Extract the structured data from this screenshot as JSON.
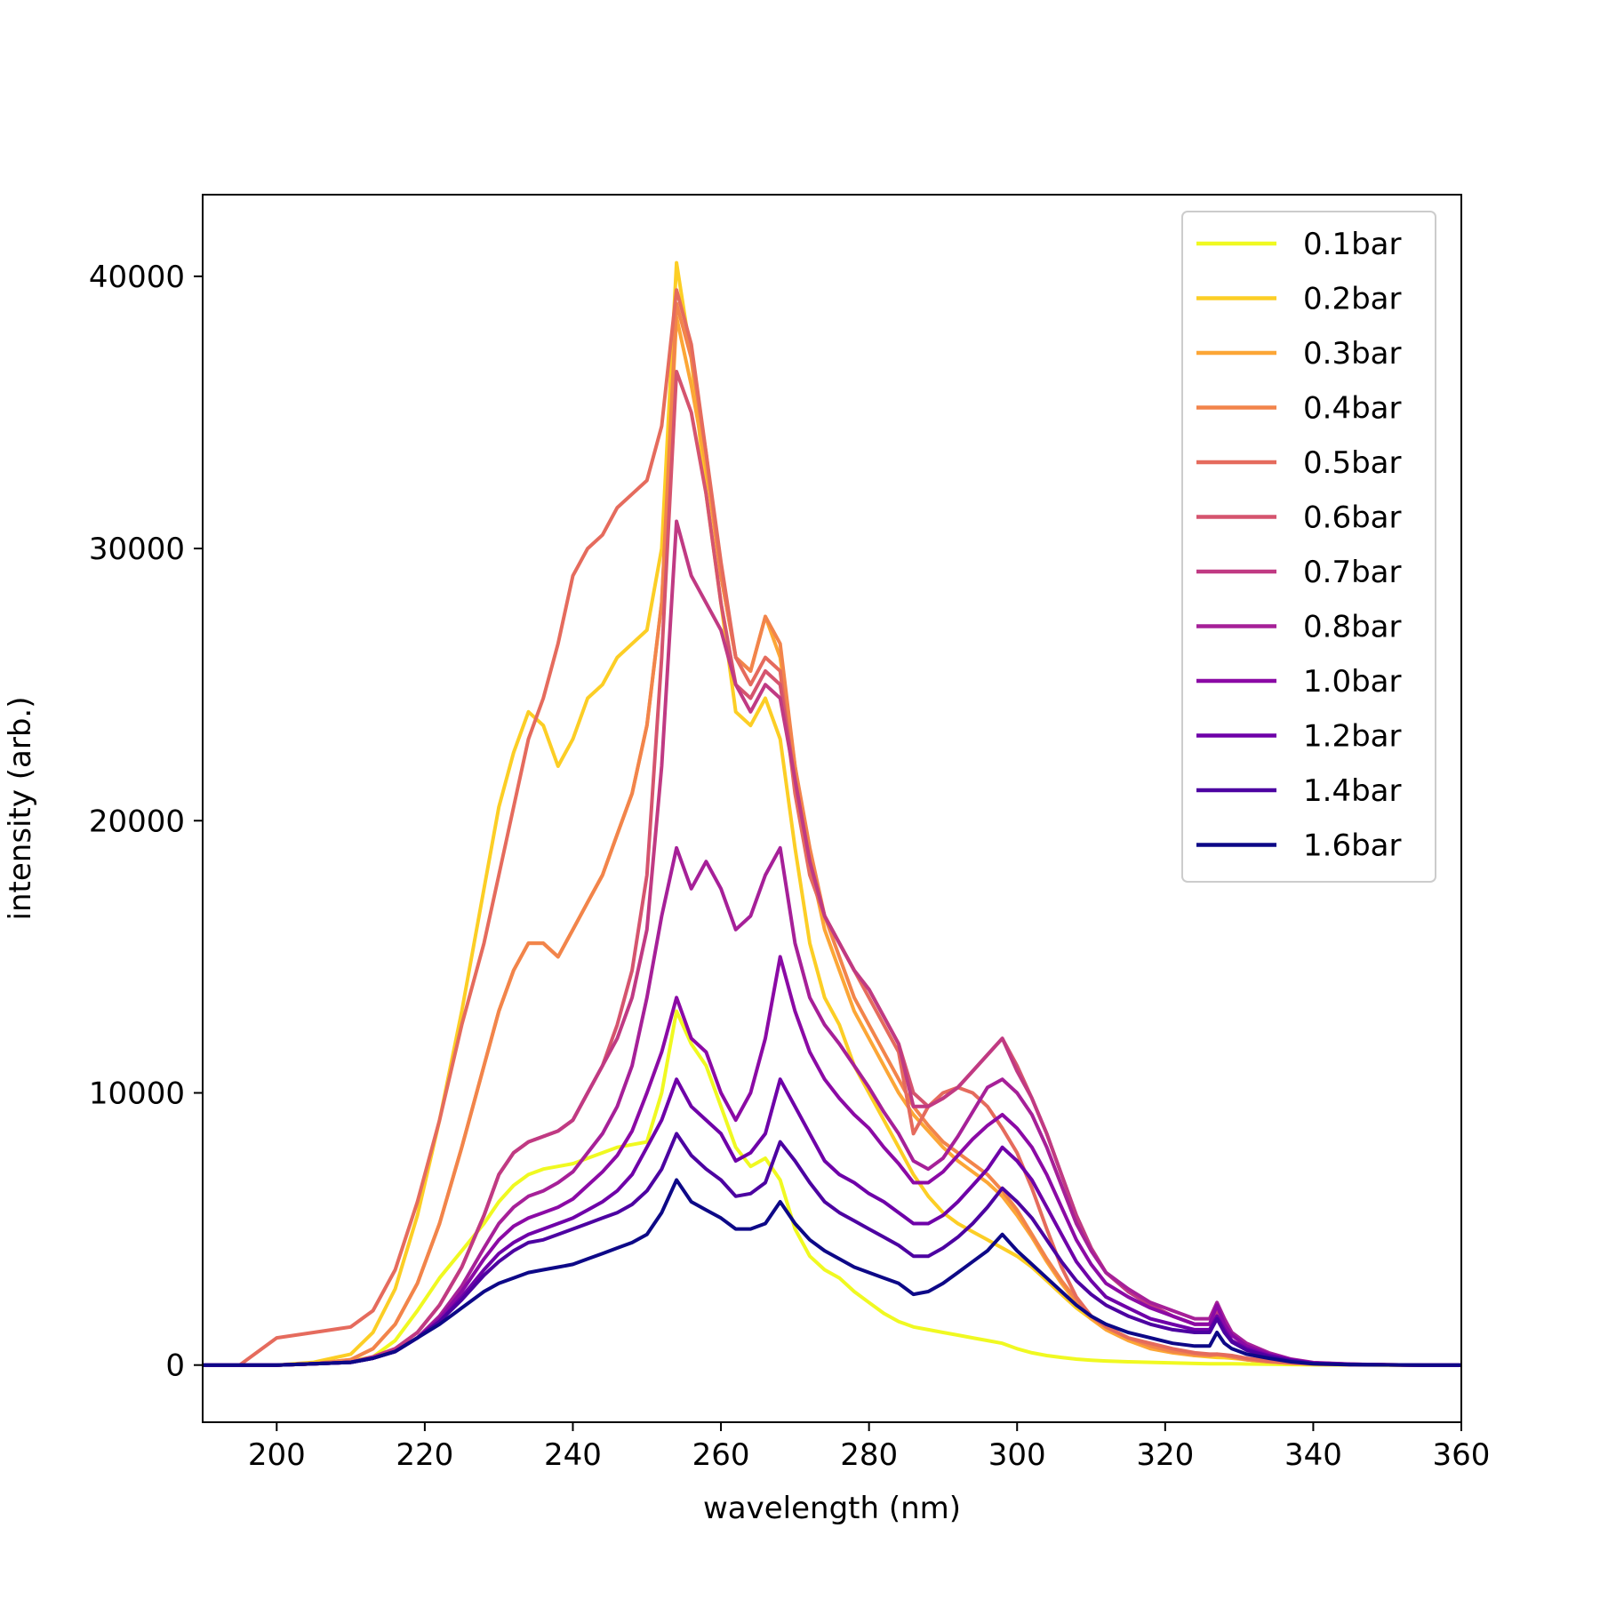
{
  "chart_data": {
    "type": "line",
    "title": "",
    "xlabel": "wavelength (nm)",
    "ylabel": "intensity (arb.)",
    "xlim": [
      190,
      360
    ],
    "ylim": [
      -2100,
      43000
    ],
    "xticks": [
      200,
      220,
      240,
      260,
      280,
      300,
      320,
      340,
      360
    ],
    "yticks": [
      0,
      10000,
      20000,
      30000,
      40000
    ],
    "xtick_labels": [
      "200",
      "220",
      "240",
      "260",
      "280",
      "300",
      "320",
      "340",
      "360"
    ],
    "ytick_labels": [
      "0",
      "10000",
      "20000",
      "30000",
      "40000"
    ],
    "grid": false,
    "legend_position": "top-right",
    "x": [
      190,
      195,
      200,
      205,
      210,
      213,
      216,
      219,
      222,
      225,
      228,
      230,
      232,
      234,
      236,
      238,
      240,
      242,
      244,
      246,
      248,
      250,
      252,
      254,
      256,
      258,
      260,
      262,
      264,
      266,
      268,
      270,
      272,
      274,
      276,
      278,
      280,
      282,
      284,
      286,
      288,
      290,
      292,
      294,
      296,
      298,
      300,
      302,
      304,
      306,
      308,
      310,
      312,
      315,
      318,
      321,
      324,
      326,
      327,
      328,
      329,
      331,
      334,
      337,
      340,
      345,
      350,
      355,
      360
    ],
    "series": [
      {
        "name": "0.1bar",
        "color": "#f0f921",
        "values": [
          0,
          0,
          0,
          50,
          150,
          300,
          900,
          2000,
          3200,
          4200,
          5200,
          6000,
          6600,
          7000,
          7200,
          7300,
          7400,
          7600,
          7800,
          8000,
          8100,
          8200,
          10000,
          13000,
          11800,
          11000,
          9500,
          8000,
          7300,
          7600,
          6800,
          5000,
          4000,
          3500,
          3200,
          2700,
          2300,
          1900,
          1600,
          1400,
          1300,
          1200,
          1100,
          1000,
          900,
          800,
          600,
          450,
          350,
          280,
          220,
          180,
          150,
          120,
          100,
          80,
          60,
          50,
          50,
          50,
          50,
          40,
          30,
          20,
          10,
          5,
          0,
          0,
          0
        ]
      },
      {
        "name": "0.2bar",
        "color": "#fcce25",
        "values": [
          0,
          0,
          0,
          100,
          400,
          1200,
          2800,
          5500,
          9000,
          13000,
          17500,
          20500,
          22500,
          24000,
          23500,
          22000,
          23000,
          24500,
          25000,
          26000,
          26500,
          27000,
          30000,
          40500,
          37000,
          32000,
          28000,
          24000,
          23500,
          24500,
          23000,
          19000,
          15500,
          13500,
          12500,
          11000,
          10000,
          9000,
          8000,
          7000,
          6200,
          5600,
          5200,
          4900,
          4600,
          4300,
          4000,
          3600,
          3100,
          2600,
          2100,
          1700,
          1400,
          1000,
          700,
          500,
          350,
          300,
          280,
          270,
          250,
          200,
          120,
          70,
          40,
          15,
          5,
          0,
          0
        ]
      },
      {
        "name": "0.3bar",
        "color": "#fca636",
        "values": [
          0,
          0,
          0,
          50,
          200,
          600,
          1500,
          3000,
          5200,
          8000,
          11000,
          13000,
          14500,
          15500,
          15500,
          15000,
          16000,
          17000,
          18000,
          19500,
          21000,
          23500,
          28000,
          38500,
          36000,
          33000,
          29000,
          26000,
          25500,
          27500,
          26000,
          22000,
          18500,
          16000,
          14500,
          13000,
          12000,
          11000,
          10000,
          9200,
          8600,
          8000,
          7500,
          7100,
          6700,
          6200,
          5500,
          4700,
          3800,
          3000,
          2300,
          1700,
          1300,
          900,
          600,
          450,
          350,
          350,
          400,
          350,
          300,
          200,
          120,
          70,
          40,
          15,
          5,
          0,
          0
        ]
      },
      {
        "name": "0.4bar",
        "color": "#f2844b",
        "values": [
          0,
          0,
          0,
          50,
          200,
          600,
          1500,
          3000,
          5200,
          8000,
          11000,
          13000,
          14500,
          15500,
          15500,
          15000,
          16000,
          17000,
          18000,
          19500,
          21000,
          23500,
          28000,
          39000,
          37000,
          33500,
          29000,
          26000,
          25500,
          27500,
          26500,
          22000,
          19000,
          16500,
          15000,
          13500,
          12500,
          11500,
          10500,
          9500,
          8800,
          8200,
          7800,
          7400,
          7000,
          6400,
          5700,
          4800,
          3900,
          3100,
          2400,
          1800,
          1400,
          1000,
          700,
          500,
          400,
          350,
          380,
          350,
          300,
          200,
          120,
          70,
          40,
          15,
          5,
          0,
          0
        ]
      },
      {
        "name": "0.5bar",
        "color": "#e56b5d",
        "values": [
          0,
          0,
          1000,
          1200,
          1400,
          2000,
          3500,
          6000,
          9000,
          12500,
          15500,
          18000,
          20500,
          23000,
          24500,
          26500,
          29000,
          30000,
          30500,
          31500,
          32000,
          32500,
          34500,
          39500,
          37500,
          33500,
          29500,
          26000,
          25000,
          26000,
          25500,
          21000,
          18000,
          16500,
          15500,
          14500,
          13500,
          12500,
          11500,
          8500,
          9500,
          10000,
          10200,
          10000,
          9500,
          8700,
          7800,
          6500,
          5000,
          3600,
          2500,
          1800,
          1400,
          1000,
          800,
          600,
          450,
          400,
          400,
          380,
          350,
          250,
          150,
          80,
          40,
          15,
          5,
          0,
          0
        ]
      },
      {
        "name": "0.6bar",
        "color": "#d5546e",
        "values": [
          0,
          0,
          0,
          50,
          100,
          300,
          600,
          1200,
          2200,
          3600,
          5500,
          7000,
          7800,
          8200,
          8400,
          8600,
          9000,
          10000,
          11000,
          12500,
          14500,
          18000,
          26000,
          36500,
          35000,
          32000,
          28000,
          25000,
          24500,
          25500,
          25000,
          21500,
          18500,
          16500,
          15500,
          14500,
          13800,
          12800,
          11800,
          10000,
          9500,
          9800,
          10200,
          10800,
          11400,
          12000,
          11000,
          9800,
          8500,
          7000,
          5500,
          4300,
          3400,
          2700,
          2200,
          1800,
          1500,
          1500,
          2000,
          1500,
          1100,
          700,
          400,
          200,
          80,
          30,
          10,
          0,
          0
        ]
      },
      {
        "name": "0.7bar",
        "color": "#c03a83",
        "values": [
          0,
          0,
          0,
          50,
          100,
          300,
          600,
          1200,
          2200,
          3600,
          5500,
          7000,
          7800,
          8200,
          8400,
          8600,
          9000,
          10000,
          11000,
          12000,
          13500,
          16000,
          22000,
          31000,
          29000,
          28000,
          27000,
          25000,
          24000,
          25000,
          24500,
          21500,
          18500,
          16500,
          15500,
          14500,
          13800,
          12800,
          11800,
          9500,
          9500,
          9800,
          10200,
          10800,
          11400,
          12000,
          10800,
          9800,
          8500,
          7000,
          5500,
          4300,
          3400,
          2700,
          2200,
          1800,
          1500,
          1500,
          2000,
          1500,
          1100,
          700,
          400,
          200,
          80,
          30,
          10,
          0,
          0
        ]
      },
      {
        "name": "0.8bar",
        "color": "#a62098",
        "values": [
          0,
          0,
          0,
          50,
          100,
          250,
          500,
          1000,
          1800,
          2900,
          4300,
          5200,
          5800,
          6200,
          6400,
          6700,
          7100,
          7800,
          8500,
          9500,
          11000,
          13500,
          16500,
          19000,
          17500,
          18500,
          17500,
          16000,
          16500,
          18000,
          19000,
          15500,
          13500,
          12500,
          11800,
          11000,
          10200,
          9300,
          8500,
          7500,
          7200,
          7600,
          8400,
          9300,
          10200,
          10500,
          10000,
          9200,
          8000,
          6600,
          5200,
          4200,
          3400,
          2800,
          2300,
          2000,
          1700,
          1700,
          2300,
          1700,
          1200,
          800,
          450,
          220,
          90,
          35,
          10,
          0,
          0
        ]
      },
      {
        "name": "1.0bar",
        "color": "#8b0aa5",
        "values": [
          0,
          0,
          0,
          50,
          100,
          250,
          500,
          1000,
          1700,
          2700,
          3900,
          4600,
          5100,
          5400,
          5600,
          5800,
          6100,
          6600,
          7100,
          7700,
          8600,
          10000,
          11500,
          13500,
          12000,
          11500,
          10000,
          9000,
          10000,
          12000,
          15000,
          13000,
          11500,
          10500,
          9800,
          9200,
          8700,
          8000,
          7400,
          6700,
          6700,
          7100,
          7700,
          8300,
          8800,
          9200,
          8700,
          8000,
          7000,
          5800,
          4600,
          3700,
          3000,
          2500,
          2100,
          1800,
          1500,
          1500,
          2200,
          1500,
          1100,
          700,
          400,
          200,
          80,
          30,
          10,
          0,
          0
        ]
      },
      {
        "name": "1.2bar",
        "color": "#6e00a8",
        "values": [
          0,
          0,
          0,
          50,
          100,
          250,
          500,
          1000,
          1600,
          2500,
          3500,
          4100,
          4500,
          4800,
          5000,
          5200,
          5400,
          5700,
          6000,
          6400,
          7000,
          8000,
          9000,
          10500,
          9500,
          9000,
          8500,
          7500,
          7800,
          8500,
          10500,
          9500,
          8500,
          7500,
          7000,
          6700,
          6300,
          6000,
          5600,
          5200,
          5200,
          5500,
          6000,
          6600,
          7200,
          8000,
          7500,
          6800,
          5800,
          4800,
          3800,
          3100,
          2500,
          2100,
          1700,
          1500,
          1300,
          1300,
          1800,
          1300,
          900,
          600,
          350,
          180,
          70,
          25,
          5,
          0,
          0
        ]
      },
      {
        "name": "1.4bar",
        "color": "#4c02a1",
        "values": [
          0,
          0,
          0,
          50,
          100,
          250,
          500,
          1000,
          1600,
          2400,
          3300,
          3800,
          4200,
          4500,
          4600,
          4800,
          5000,
          5200,
          5400,
          5600,
          5900,
          6400,
          7200,
          8500,
          7700,
          7200,
          6800,
          6200,
          6300,
          6700,
          8200,
          7500,
          6700,
          6000,
          5600,
          5300,
          5000,
          4700,
          4400,
          4000,
          4000,
          4300,
          4700,
          5200,
          5800,
          6500,
          6000,
          5400,
          4600,
          3800,
          3100,
          2600,
          2200,
          1800,
          1500,
          1300,
          1200,
          1200,
          1700,
          1200,
          850,
          550,
          320,
          160,
          60,
          20,
          5,
          0,
          0
        ]
      },
      {
        "name": "1.6bar",
        "color": "#0d0887",
        "values": [
          0,
          0,
          0,
          50,
          100,
          250,
          500,
          1000,
          1500,
          2100,
          2700,
          3000,
          3200,
          3400,
          3500,
          3600,
          3700,
          3900,
          4100,
          4300,
          4500,
          4800,
          5600,
          6800,
          6000,
          5700,
          5400,
          5000,
          5000,
          5200,
          6000,
          5200,
          4600,
          4200,
          3900,
          3600,
          3400,
          3200,
          3000,
          2600,
          2700,
          3000,
          3400,
          3800,
          4200,
          4800,
          4200,
          3700,
          3200,
          2700,
          2200,
          1800,
          1500,
          1200,
          1000,
          800,
          700,
          700,
          1200,
          800,
          600,
          400,
          250,
          120,
          50,
          15,
          5,
          0,
          0
        ]
      }
    ]
  }
}
